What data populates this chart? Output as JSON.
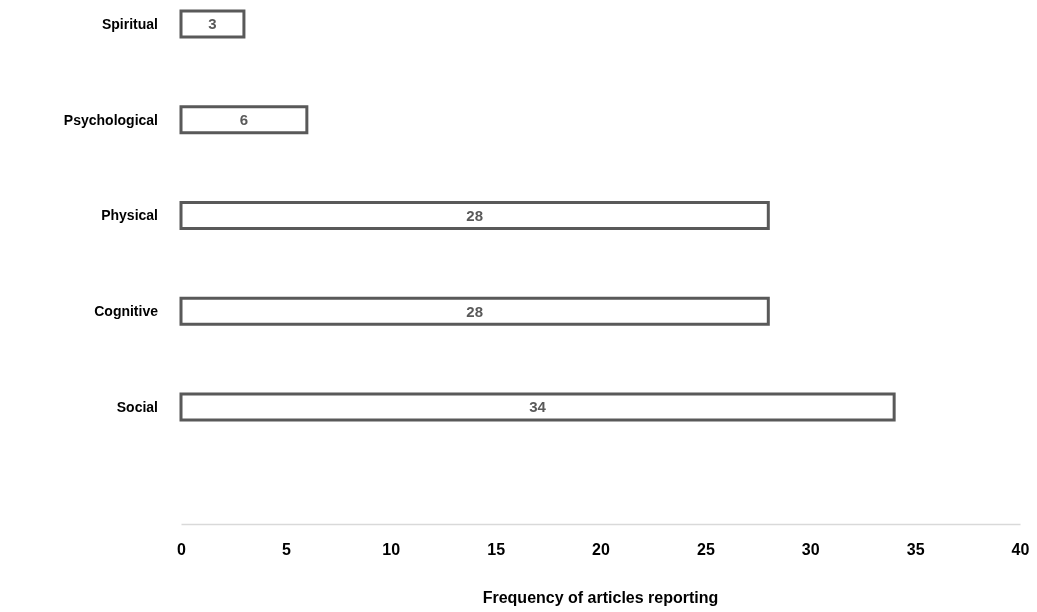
{
  "chart_data": {
    "type": "bar",
    "orientation": "horizontal",
    "xlabel": "Frequency of articles reporting",
    "categories": [
      "Spiritual",
      "Psychological",
      "Physical",
      "Cognitive",
      "Social"
    ],
    "values": [
      3,
      6,
      28,
      28,
      34
    ],
    "color": "#595959",
    "xlim": [
      0,
      40
    ],
    "xticks": [
      0,
      5,
      10,
      15,
      20,
      25,
      30,
      35,
      40
    ],
    "data_labels": true
  }
}
